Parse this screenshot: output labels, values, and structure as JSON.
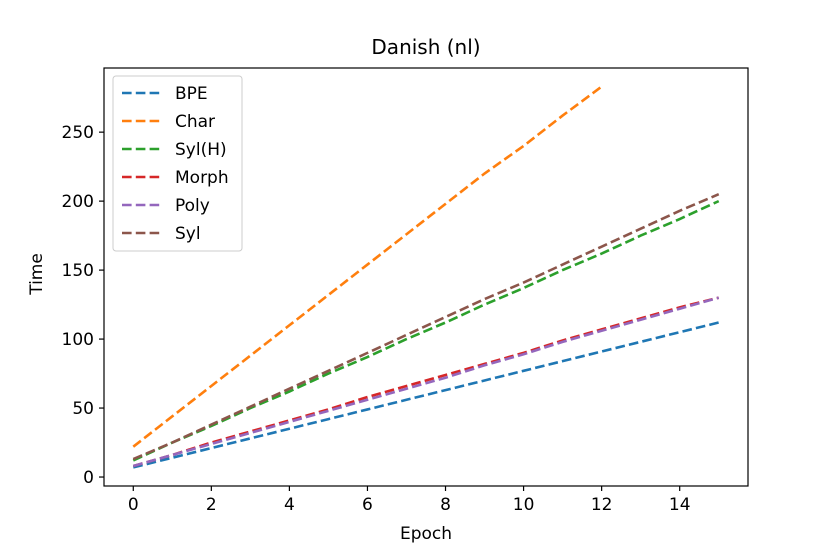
{
  "chart_data": {
    "type": "line",
    "title": "Danish (nl)",
    "xlabel": "Epoch",
    "ylabel": "Time",
    "xlim": [
      -0.75,
      15.75
    ],
    "ylim": [
      -6.5,
      296.5
    ],
    "xticks": [
      0,
      2,
      4,
      6,
      8,
      10,
      12,
      14
    ],
    "yticks": [
      0,
      50,
      100,
      150,
      200,
      250
    ],
    "legend_position": "top-left",
    "line_style": "dashed",
    "series": [
      {
        "name": "BPE",
        "color": "#1f77b4",
        "x": [
          0,
          1,
          2,
          3,
          4,
          5,
          6,
          7,
          8,
          9,
          10,
          11,
          12,
          13,
          14,
          15
        ],
        "values": [
          7,
          14,
          21,
          28,
          35,
          42,
          49,
          56,
          63,
          70,
          77,
          84,
          91,
          98,
          105,
          112
        ]
      },
      {
        "name": "Char",
        "color": "#ff7f0e",
        "x": [
          0,
          1,
          2,
          3,
          4,
          5,
          6,
          7,
          8,
          9,
          10,
          11,
          12
        ],
        "values": [
          22,
          44,
          66,
          88,
          110,
          132,
          154,
          176,
          198,
          220,
          240,
          262,
          283
        ]
      },
      {
        "name": "Syl(H)",
        "color": "#2ca02c",
        "x": [
          0,
          1,
          2,
          3,
          4,
          5,
          6,
          7,
          8,
          9,
          10,
          11,
          12,
          13,
          14,
          15
        ],
        "values": [
          12,
          25,
          37,
          50,
          62,
          75,
          87,
          100,
          112,
          125,
          137,
          150,
          162,
          175,
          187,
          200
        ]
      },
      {
        "name": "Morph",
        "color": "#d62728",
        "x": [
          0,
          1,
          2,
          3,
          4,
          5,
          6,
          7,
          8,
          9,
          10,
          11,
          12,
          13,
          14,
          15
        ],
        "values": [
          8,
          16,
          25,
          33,
          41,
          49,
          58,
          66,
          74,
          82,
          90,
          99,
          107,
          115,
          123,
          130
        ]
      },
      {
        "name": "Poly",
        "color": "#9467bd",
        "x": [
          0,
          1,
          2,
          3,
          4,
          5,
          6,
          7,
          8,
          9,
          10,
          11,
          12,
          13,
          14,
          15
        ],
        "values": [
          8,
          16,
          24,
          32,
          40,
          48,
          56,
          64,
          72,
          81,
          89,
          98,
          106,
          114,
          122,
          130
        ]
      },
      {
        "name": "Syl",
        "color": "#8c564b",
        "x": [
          0,
          1,
          2,
          3,
          4,
          5,
          6,
          7,
          8,
          9,
          10,
          11,
          12,
          13,
          14,
          15
        ],
        "values": [
          13,
          25,
          38,
          51,
          64,
          77,
          90,
          103,
          116,
          129,
          141,
          154,
          167,
          180,
          193,
          205
        ]
      }
    ]
  }
}
